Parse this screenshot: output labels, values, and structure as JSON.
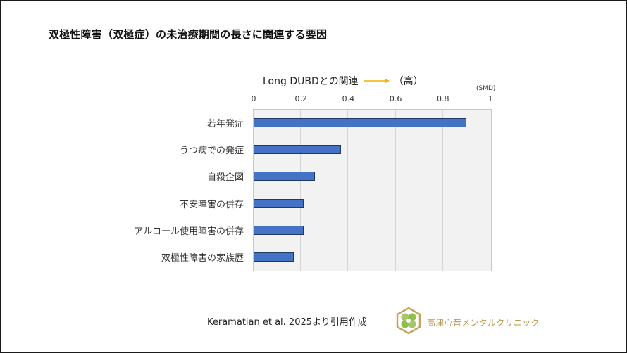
{
  "slide": {
    "title": "双極性障害（双極症）の未治療期間の長さに関連する要因",
    "source": "Keramatian et al. 2025より引用作成",
    "clinic_name": "高津心音メンタルクリニック",
    "logo_icon": "hexagon-clover-logo-icon"
  },
  "chart": {
    "axis_title_left": "Long DUBDとの関連",
    "axis_title_right": "（高）",
    "unit": "(SMD)",
    "ticks": [
      "0",
      "0.2",
      "0.4",
      "0.6",
      "0.8",
      "1"
    ],
    "categories": [
      "若年発症",
      "うつ病での発症",
      "自殺企図",
      "不安障害の併存",
      "アルコール使用障害の併存",
      "双極性障害の家族歴"
    ]
  },
  "colors": {
    "bar_fill": "#4472c4",
    "bar_border": "#1f3864",
    "plot_bg": "#f2f2f2",
    "arrow": "#f0b400",
    "clinic_text": "#b89a4a"
  },
  "chart_data": {
    "type": "bar",
    "orientation": "horizontal",
    "title": "双極性障害（双極症）の未治療期間の長さに関連する要因",
    "xlabel": "Long DUBDとの関連 →（高） (SMD)",
    "ylabel": "",
    "categories": [
      "若年発症",
      "うつ病での発症",
      "自殺企図",
      "不安障害の併存",
      "アルコール使用障害の併存",
      "双極性障害の家族歴"
    ],
    "values": [
      0.9,
      0.37,
      0.26,
      0.21,
      0.21,
      0.17
    ],
    "xlim": [
      0,
      1
    ],
    "x_ticks": [
      0,
      0.2,
      0.4,
      0.6,
      0.8,
      1
    ],
    "x_axis_position": "top",
    "grid": "vertical",
    "legend": "none",
    "annotations": [
      "(SMD)",
      "Keramatian et al. 2025より引用作成"
    ]
  }
}
